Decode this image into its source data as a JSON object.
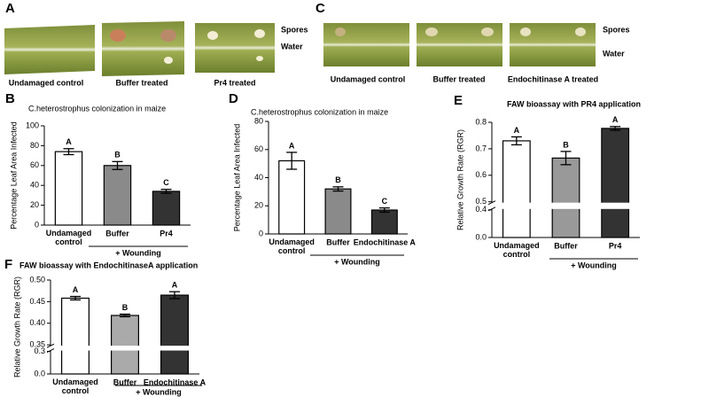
{
  "photo_panels": [
    {
      "panel": "A",
      "labels": [
        "Undamaged control",
        "Buffer treated",
        "Pr4 treated"
      ],
      "rows": [
        "Spores",
        "Water"
      ]
    },
    {
      "panel": "C",
      "labels": [
        "Undamaged control",
        "Buffer treated",
        "Endochitinase A treated"
      ],
      "rows": [
        "Spores",
        "Water"
      ]
    }
  ],
  "chart_data": [
    {
      "type": "bar",
      "panel": "B",
      "title": "C.heterostrophus colonization in maize",
      "y_label": "Percentage Leaf Area Infected",
      "categories": [
        "Undamaged control",
        "Buffer",
        "Pr4"
      ],
      "group_label": "+ Wounding",
      "values": [
        74,
        60,
        34
      ],
      "errors": [
        3,
        4,
        2
      ],
      "letters": [
        "A",
        "B",
        "C"
      ],
      "colors": [
        "#ffffff",
        "#8a8a8a",
        "#333333"
      ],
      "ylim": [
        0,
        100
      ],
      "yticks": [
        0,
        20,
        40,
        60,
        80,
        100
      ]
    },
    {
      "type": "bar",
      "panel": "D",
      "title": "C.heterostrophus colonization in maize",
      "y_label": "Percentage Leaf Area Infected",
      "categories": [
        "Undamaged control",
        "Buffer",
        "Endochitinase A"
      ],
      "group_label": "+ Wounding",
      "values": [
        52,
        32,
        17
      ],
      "errors": [
        6,
        1.5,
        1.5
      ],
      "letters": [
        "A",
        "B",
        "C"
      ],
      "colors": [
        "#ffffff",
        "#8a8a8a",
        "#333333"
      ],
      "ylim": [
        0,
        80
      ],
      "yticks": [
        0,
        20,
        40,
        60,
        80
      ]
    },
    {
      "type": "bar",
      "panel": "E",
      "title": "FAW bioassay with PR4 application",
      "y_label": "Relative Growth Rate (RGR)",
      "categories": [
        "Undamaged control",
        "Buffer",
        "Pr4"
      ],
      "group_label": "+ Wounding",
      "values": [
        0.73,
        0.665,
        0.777
      ],
      "errors": [
        0.015,
        0.025,
        0.007
      ],
      "letters": [
        "A",
        "B",
        "A"
      ],
      "colors": [
        "#ffffff",
        "#999999",
        "#333333"
      ],
      "ylim": [
        0,
        0.8
      ],
      "axis_break": [
        0.4,
        0.5
      ],
      "yticks": [
        {
          "value": 0,
          "label": "0.0"
        },
        {
          "value": 0.4,
          "label": "0.4"
        },
        0.5,
        0.6,
        0.7,
        0.8
      ]
    },
    {
      "type": "bar",
      "panel": "F",
      "title": "FAW bioassay with EndochitinaseA application",
      "y_label": "Relative Growth Rate (RGR)",
      "categories": [
        "Undamaged control",
        "Buffer",
        "Endochitinase A"
      ],
      "group_label": "+ Wounding",
      "values": [
        0.458,
        0.418,
        0.465
      ],
      "errors": [
        0.004,
        0.003,
        0.008
      ],
      "letters": [
        "A",
        "B",
        "A"
      ],
      "colors": [
        "#ffffff",
        "#aaaaaa",
        "#333333"
      ],
      "ylim": [
        0,
        0.5
      ],
      "axis_break": [
        0.3,
        0.35
      ],
      "yticks": [
        {
          "value": 0,
          "label": "0.0"
        },
        0.3,
        0.35,
        {
          "value": 0.4,
          "label": "0.40"
        },
        0.45,
        {
          "value": 0.5,
          "label": "0.50"
        }
      ]
    }
  ]
}
